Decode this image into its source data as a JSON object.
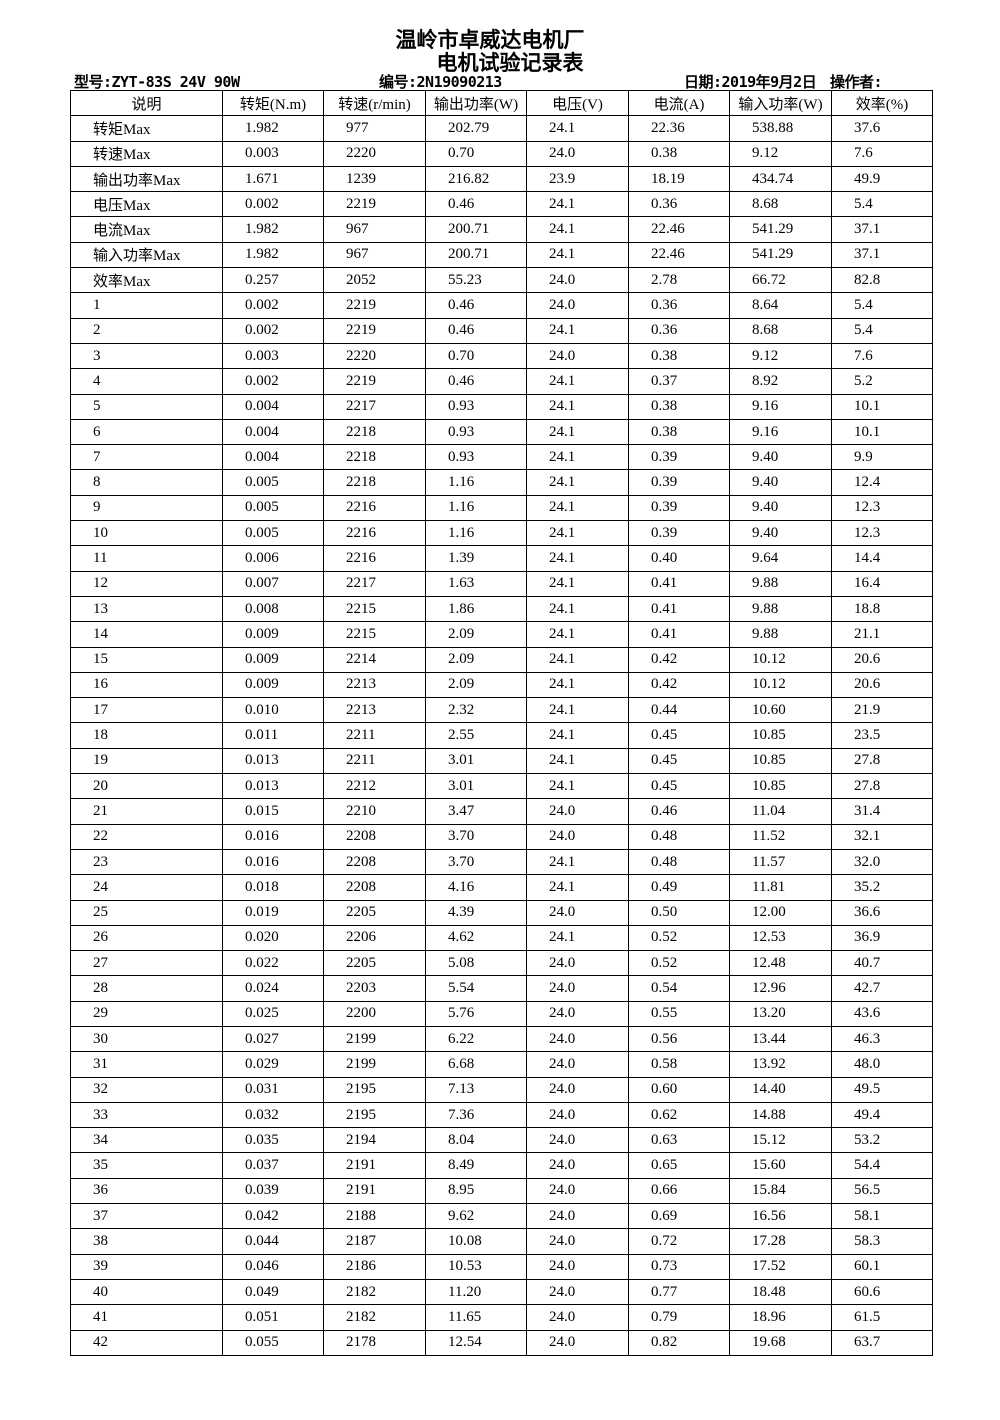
{
  "header": {
    "company": "温岭市卓威达电机厂",
    "title": "电机试验记录表",
    "model": "型号:ZYT-83S 24V 90W",
    "serial": "编号:2N19090213",
    "date": "日期:2019年9月2日",
    "operator": "操作者:"
  },
  "table": {
    "columns": [
      "说明",
      "转矩(N.m)",
      "转速(r/min)",
      "输出功率(W)",
      "电压(V)",
      "电流(A)",
      "输入功率(W)",
      "效率(%)"
    ],
    "rows": [
      [
        "转矩Max",
        "1.982",
        "977",
        "202.79",
        "24.1",
        "22.36",
        "538.88",
        "37.6"
      ],
      [
        "转速Max",
        "0.003",
        "2220",
        "0.70",
        "24.0",
        "0.38",
        "9.12",
        "7.6"
      ],
      [
        "输出功率Max",
        "1.671",
        "1239",
        "216.82",
        "23.9",
        "18.19",
        "434.74",
        "49.9"
      ],
      [
        "电压Max",
        "0.002",
        "2219",
        "0.46",
        "24.1",
        "0.36",
        "8.68",
        "5.4"
      ],
      [
        "电流Max",
        "1.982",
        "967",
        "200.71",
        "24.1",
        "22.46",
        "541.29",
        "37.1"
      ],
      [
        "输入功率Max",
        "1.982",
        "967",
        "200.71",
        "24.1",
        "22.46",
        "541.29",
        "37.1"
      ],
      [
        "效率Max",
        "0.257",
        "2052",
        "55.23",
        "24.0",
        "2.78",
        "66.72",
        "82.8"
      ],
      [
        "1",
        "0.002",
        "2219",
        "0.46",
        "24.0",
        "0.36",
        "8.64",
        "5.4"
      ],
      [
        "2",
        "0.002",
        "2219",
        "0.46",
        "24.1",
        "0.36",
        "8.68",
        "5.4"
      ],
      [
        "3",
        "0.003",
        "2220",
        "0.70",
        "24.0",
        "0.38",
        "9.12",
        "7.6"
      ],
      [
        "4",
        "0.002",
        "2219",
        "0.46",
        "24.1",
        "0.37",
        "8.92",
        "5.2"
      ],
      [
        "5",
        "0.004",
        "2217",
        "0.93",
        "24.1",
        "0.38",
        "9.16",
        "10.1"
      ],
      [
        "6",
        "0.004",
        "2218",
        "0.93",
        "24.1",
        "0.38",
        "9.16",
        "10.1"
      ],
      [
        "7",
        "0.004",
        "2218",
        "0.93",
        "24.1",
        "0.39",
        "9.40",
        "9.9"
      ],
      [
        "8",
        "0.005",
        "2218",
        "1.16",
        "24.1",
        "0.39",
        "9.40",
        "12.4"
      ],
      [
        "9",
        "0.005",
        "2216",
        "1.16",
        "24.1",
        "0.39",
        "9.40",
        "12.3"
      ],
      [
        "10",
        "0.005",
        "2216",
        "1.16",
        "24.1",
        "0.39",
        "9.40",
        "12.3"
      ],
      [
        "11",
        "0.006",
        "2216",
        "1.39",
        "24.1",
        "0.40",
        "9.64",
        "14.4"
      ],
      [
        "12",
        "0.007",
        "2217",
        "1.63",
        "24.1",
        "0.41",
        "9.88",
        "16.4"
      ],
      [
        "13",
        "0.008",
        "2215",
        "1.86",
        "24.1",
        "0.41",
        "9.88",
        "18.8"
      ],
      [
        "14",
        "0.009",
        "2215",
        "2.09",
        "24.1",
        "0.41",
        "9.88",
        "21.1"
      ],
      [
        "15",
        "0.009",
        "2214",
        "2.09",
        "24.1",
        "0.42",
        "10.12",
        "20.6"
      ],
      [
        "16",
        "0.009",
        "2213",
        "2.09",
        "24.1",
        "0.42",
        "10.12",
        "20.6"
      ],
      [
        "17",
        "0.010",
        "2213",
        "2.32",
        "24.1",
        "0.44",
        "10.60",
        "21.9"
      ],
      [
        "18",
        "0.011",
        "2211",
        "2.55",
        "24.1",
        "0.45",
        "10.85",
        "23.5"
      ],
      [
        "19",
        "0.013",
        "2211",
        "3.01",
        "24.1",
        "0.45",
        "10.85",
        "27.8"
      ],
      [
        "20",
        "0.013",
        "2212",
        "3.01",
        "24.1",
        "0.45",
        "10.85",
        "27.8"
      ],
      [
        "21",
        "0.015",
        "2210",
        "3.47",
        "24.0",
        "0.46",
        "11.04",
        "31.4"
      ],
      [
        "22",
        "0.016",
        "2208",
        "3.70",
        "24.0",
        "0.48",
        "11.52",
        "32.1"
      ],
      [
        "23",
        "0.016",
        "2208",
        "3.70",
        "24.1",
        "0.48",
        "11.57",
        "32.0"
      ],
      [
        "24",
        "0.018",
        "2208",
        "4.16",
        "24.1",
        "0.49",
        "11.81",
        "35.2"
      ],
      [
        "25",
        "0.019",
        "2205",
        "4.39",
        "24.0",
        "0.50",
        "12.00",
        "36.6"
      ],
      [
        "26",
        "0.020",
        "2206",
        "4.62",
        "24.1",
        "0.52",
        "12.53",
        "36.9"
      ],
      [
        "27",
        "0.022",
        "2205",
        "5.08",
        "24.0",
        "0.52",
        "12.48",
        "40.7"
      ],
      [
        "28",
        "0.024",
        "2203",
        "5.54",
        "24.0",
        "0.54",
        "12.96",
        "42.7"
      ],
      [
        "29",
        "0.025",
        "2200",
        "5.76",
        "24.0",
        "0.55",
        "13.20",
        "43.6"
      ],
      [
        "30",
        "0.027",
        "2199",
        "6.22",
        "24.0",
        "0.56",
        "13.44",
        "46.3"
      ],
      [
        "31",
        "0.029",
        "2199",
        "6.68",
        "24.0",
        "0.58",
        "13.92",
        "48.0"
      ],
      [
        "32",
        "0.031",
        "2195",
        "7.13",
        "24.0",
        "0.60",
        "14.40",
        "49.5"
      ],
      [
        "33",
        "0.032",
        "2195",
        "7.36",
        "24.0",
        "0.62",
        "14.88",
        "49.4"
      ],
      [
        "34",
        "0.035",
        "2194",
        "8.04",
        "24.0",
        "0.63",
        "15.12",
        "53.2"
      ],
      [
        "35",
        "0.037",
        "2191",
        "8.49",
        "24.0",
        "0.65",
        "15.60",
        "54.4"
      ],
      [
        "36",
        "0.039",
        "2191",
        "8.95",
        "24.0",
        "0.66",
        "15.84",
        "56.5"
      ],
      [
        "37",
        "0.042",
        "2188",
        "9.62",
        "24.0",
        "0.69",
        "16.56",
        "58.1"
      ],
      [
        "38",
        "0.044",
        "2187",
        "10.08",
        "24.0",
        "0.72",
        "17.28",
        "58.3"
      ],
      [
        "39",
        "0.046",
        "2186",
        "10.53",
        "24.0",
        "0.73",
        "17.52",
        "60.1"
      ],
      [
        "40",
        "0.049",
        "2182",
        "11.20",
        "24.0",
        "0.77",
        "18.48",
        "60.6"
      ],
      [
        "41",
        "0.051",
        "2182",
        "11.65",
        "24.0",
        "0.79",
        "18.96",
        "61.5"
      ],
      [
        "42",
        "0.055",
        "2178",
        "12.54",
        "24.0",
        "0.82",
        "19.68",
        "63.7"
      ]
    ]
  }
}
